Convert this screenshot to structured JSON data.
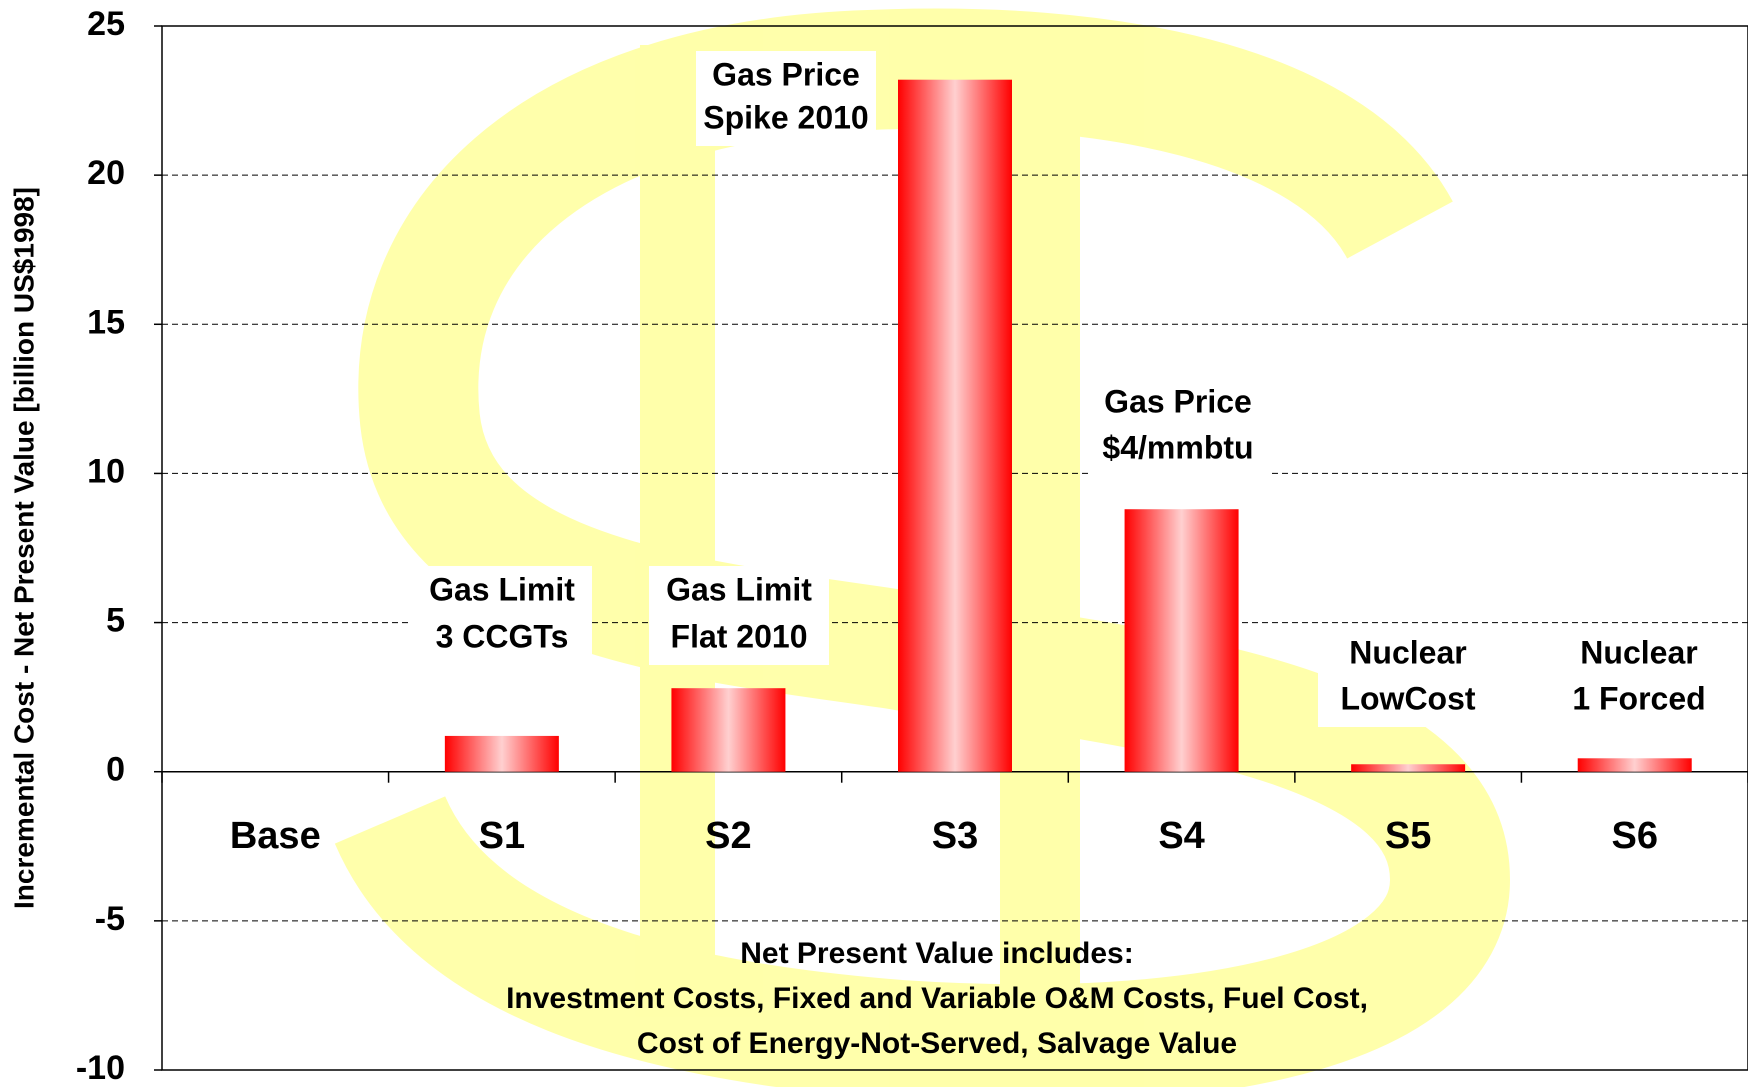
{
  "chart_data": {
    "type": "bar",
    "y_axis_label": "Incremental Cost - Net Present Value [billion US$1998]",
    "categories": [
      "Base",
      "S1",
      "S2",
      "S3",
      "S4",
      "S5",
      "S6"
    ],
    "values": [
      0,
      1.2,
      2.8,
      23.2,
      8.8,
      0.25,
      0.45
    ],
    "color": "#ff0000",
    "bar_labels": [
      null,
      [
        "Gas Limit",
        "3 CCGTs"
      ],
      [
        "Gas Limit",
        "Flat 2010"
      ],
      [
        "Gas Price",
        "Spike 2010"
      ],
      [
        "Gas Price",
        "$4/mmbtu"
      ],
      [
        "Nuclear",
        "LowCost"
      ],
      [
        "Nuclear",
        "1 Forced"
      ]
    ],
    "note": [
      "Net Present Value includes:",
      "Investment Costs, Fixed and Variable O&M Costs, Fuel Cost,",
      "Cost of Energy-Not-Served, Salvage Value"
    ],
    "ylim": [
      -10,
      25
    ],
    "yticks": [
      -10,
      -5,
      0,
      5,
      10,
      15,
      20,
      25
    ],
    "grid": true
  }
}
